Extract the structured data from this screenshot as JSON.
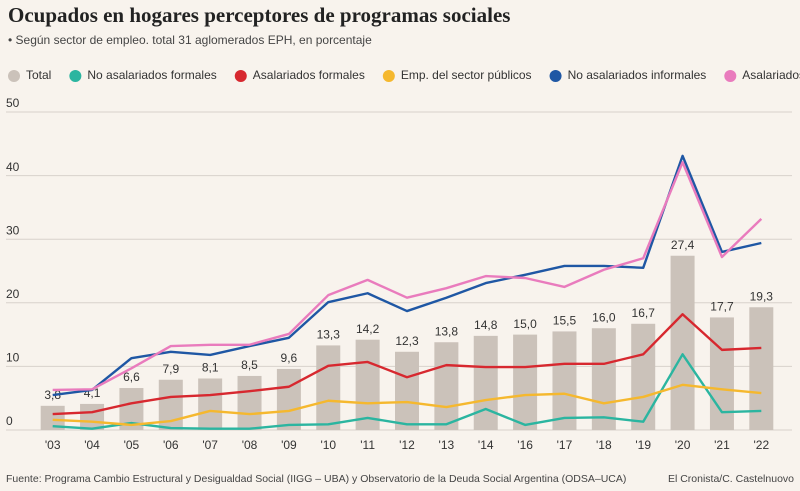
{
  "chart_data": {
    "type": "combo",
    "title": "Ocupados en hogares perceptores de programas sociales",
    "subtitle": "• Según sector de empleo. total 31 aglomerados EPH, en porcentaje",
    "source": "Fuente: Programa Cambio Estructural y Desigualdad Social (IIGG – UBA) y Observatorio de la Deuda Social Argentina (ODSA–UCA)",
    "credit": "El Cronista/C. Castelnuovo",
    "categories": [
      "'03",
      "'04",
      "'05",
      "'06",
      "'07",
      "'08",
      "'09",
      "'10",
      "'11",
      "'12",
      "'13",
      "'14",
      "'16",
      "'17",
      "'18",
      "'19",
      "'20",
      "'21",
      "'22"
    ],
    "ylim": [
      0,
      50
    ],
    "yticks": [
      0,
      10,
      20,
      30,
      40,
      50
    ],
    "grid": true,
    "series": [
      {
        "name": "Total",
        "kind": "bar",
        "color": "#cbc2ba",
        "values": [
          3.8,
          4.1,
          6.6,
          7.9,
          8.1,
          8.5,
          9.6,
          13.3,
          14.2,
          12.3,
          13.8,
          14.8,
          15.0,
          15.5,
          16.0,
          16.7,
          27.4,
          17.7,
          19.3
        ],
        "value_labels": [
          "3,8",
          "4,1",
          "6,6",
          "7,9",
          "8,1",
          "8,5",
          "9,6",
          "13,3",
          "14,2",
          "12,3",
          "13,8",
          "14,8",
          "15,0",
          "15,5",
          "16,0",
          "16,7",
          "27,4",
          "17,7",
          "19,3"
        ]
      },
      {
        "name": "No asalariados formales",
        "kind": "line",
        "color": "#2bb5a0",
        "values": [
          0.6,
          0.2,
          1.1,
          0.3,
          0.2,
          0.2,
          0.8,
          0.9,
          1.9,
          0.9,
          0.9,
          3.3,
          0.8,
          1.9,
          2.0,
          1.3,
          11.9,
          2.8,
          3.0
        ]
      },
      {
        "name": "Asalariados formales",
        "kind": "line",
        "color": "#d7282f",
        "values": [
          2.5,
          2.8,
          4.2,
          5.2,
          5.5,
          6.1,
          6.8,
          10.1,
          10.7,
          8.3,
          10.2,
          9.9,
          9.9,
          10.4,
          10.4,
          11.9,
          18.2,
          12.6,
          12.9
        ]
      },
      {
        "name": "Emp. del sector públicos",
        "kind": "line",
        "color": "#f5b82e",
        "values": [
          1.6,
          1.3,
          0.8,
          1.4,
          3.0,
          2.5,
          3.0,
          4.6,
          4.2,
          4.4,
          3.6,
          4.7,
          5.5,
          5.7,
          4.2,
          5.2,
          7.1,
          6.4,
          5.8
        ]
      },
      {
        "name": "No asalariados informales",
        "kind": "line",
        "color": "#1f57a4",
        "values": [
          5.5,
          6.3,
          11.3,
          12.3,
          11.8,
          13.2,
          14.5,
          20.1,
          21.5,
          18.7,
          20.8,
          23.1,
          24.4,
          25.8,
          25.8,
          25.5,
          43.1,
          28.0,
          29.4
        ]
      },
      {
        "name": "Asalariados informales",
        "kind": "line",
        "color": "#e97bbd",
        "values": [
          6.3,
          6.4,
          9.7,
          13.2,
          13.4,
          13.4,
          15.1,
          21.2,
          23.6,
          20.8,
          22.3,
          24.2,
          23.9,
          22.5,
          25.2,
          27.0,
          42.1,
          27.2,
          33.2
        ]
      }
    ]
  }
}
